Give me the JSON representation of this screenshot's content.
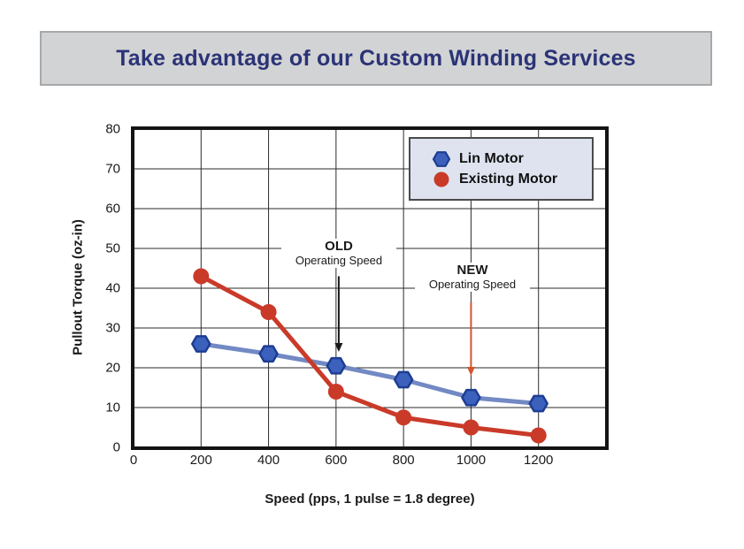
{
  "page": {
    "title": "Take advantage of our Custom Winding Services"
  },
  "colors": {
    "banner_bg": "#d2d3d4",
    "banner_border": "#a7a8aa",
    "title_text": "#2b3377",
    "grid": "#2b2b2b",
    "frame": "#141414",
    "legend_bg": "#dee3ef"
  },
  "chart_data": {
    "type": "line",
    "title": "",
    "xlabel": "Speed (pps, 1 pulse = 1.8 degree)",
    "ylabel": "Pullout Torque (oz-in)",
    "xlim": [
      0,
      1400
    ],
    "ylim": [
      0,
      80
    ],
    "x_ticks": [
      0,
      200,
      400,
      600,
      800,
      1000,
      1200
    ],
    "y_ticks": [
      0,
      10,
      20,
      30,
      40,
      50,
      60,
      70,
      80
    ],
    "grid": true,
    "legend_position": "top-right",
    "x": [
      200,
      400,
      600,
      800,
      1000,
      1200
    ],
    "series": [
      {
        "name": "Lin Motor",
        "marker": "hexagon",
        "line_color": "#7289c4",
        "marker_fill": "#3b61bd",
        "marker_stroke": "#1d3d92",
        "values": [
          26,
          23.5,
          20.5,
          17,
          12.5,
          11
        ]
      },
      {
        "name": "Existing Motor",
        "marker": "circle",
        "line_color": "#ca3a29",
        "marker_fill": "#ca3a29",
        "marker_stroke": "#ca3a29",
        "values": [
          43,
          34,
          14,
          7.5,
          5,
          3
        ]
      }
    ],
    "annotations": [
      {
        "id": "old",
        "line1": "OLD",
        "line2": "Operating Speed",
        "x_pps": 608,
        "arrow_from_torque": 43,
        "arrow_to_torque": 24,
        "arrow_color": "#1a1a1a"
      },
      {
        "id": "new",
        "line1": "NEW",
        "line2": "Operating Speed",
        "x_pps": 1000,
        "arrow_from_torque": 36.5,
        "arrow_to_torque": 18,
        "arrow_color": "#d2552e"
      }
    ]
  }
}
